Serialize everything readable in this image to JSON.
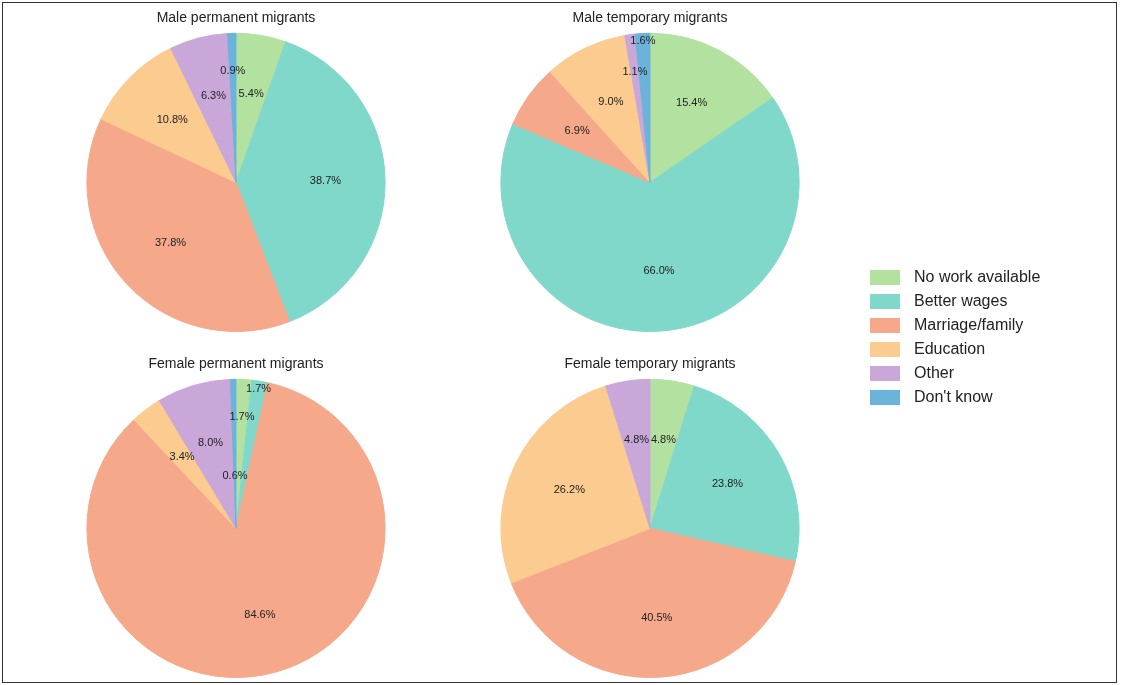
{
  "chart_data": [
    {
      "type": "pie",
      "title": "Male permanent migrants",
      "categories": [
        "No work available",
        "Better wages",
        "Marriage/family",
        "Education",
        "Other",
        "Don't know"
      ],
      "values": [
        5.4,
        38.7,
        37.8,
        10.8,
        6.3,
        0.9
      ],
      "value_labels": [
        "5.4%",
        "38.7%",
        "37.8%",
        "10.8%",
        "6.3%",
        "0.9%"
      ],
      "colors": [
        "#b3e2a0",
        "#80d8cb",
        "#f5a98a",
        "#fbcb8f",
        "#c9a8d9",
        "#6cb3dc"
      ],
      "legend": "right"
    },
    {
      "type": "pie",
      "title": "Male temporary migrants",
      "categories": [
        null,
        null,
        null,
        null,
        null,
        null
      ],
      "values": [
        15.4,
        66.0,
        6.9,
        9.0,
        1.1,
        1.6
      ],
      "value_labels": [
        "15.4%",
        "66.0%",
        "6.9%",
        "9.0%",
        "1.1%",
        "1.6%"
      ],
      "colors": [
        "#b3e2a0",
        "#80d8cb",
        "#f5a98a",
        "#fbcb8f",
        "#c9a8d9",
        "#6cb3dc"
      ]
    },
    {
      "type": "pie",
      "title": "Female permanent migrants",
      "categories": [
        null,
        null,
        null,
        null,
        null,
        null
      ],
      "values": [
        1.7,
        1.7,
        84.6,
        3.4,
        8.0,
        0.6
      ],
      "value_labels": [
        "1.7%",
        "1.7%",
        "84.6%",
        "3.4%",
        "8.0%",
        "0.6%"
      ],
      "colors": [
        "#b3e2a0",
        "#80d8cb",
        "#f5a98a",
        "#fbcb8f",
        "#c9a8d9",
        "#6cb3dc"
      ]
    },
    {
      "type": "pie",
      "title": "Female temporary migrants",
      "categories": [
        null,
        null,
        null,
        null,
        null,
        null
      ],
      "values": [
        4.8,
        23.8,
        40.5,
        26.2,
        4.8,
        null
      ],
      "value_labels": [
        "4.8%",
        "23.8%",
        "40.5%",
        "26.2%",
        "4.8%",
        null
      ],
      "colors": [
        "#b3e2a0",
        "#80d8cb",
        "#f5a98a",
        "#fbcb8f",
        "#c9a8d9",
        "#6cb3dc"
      ]
    }
  ]
}
